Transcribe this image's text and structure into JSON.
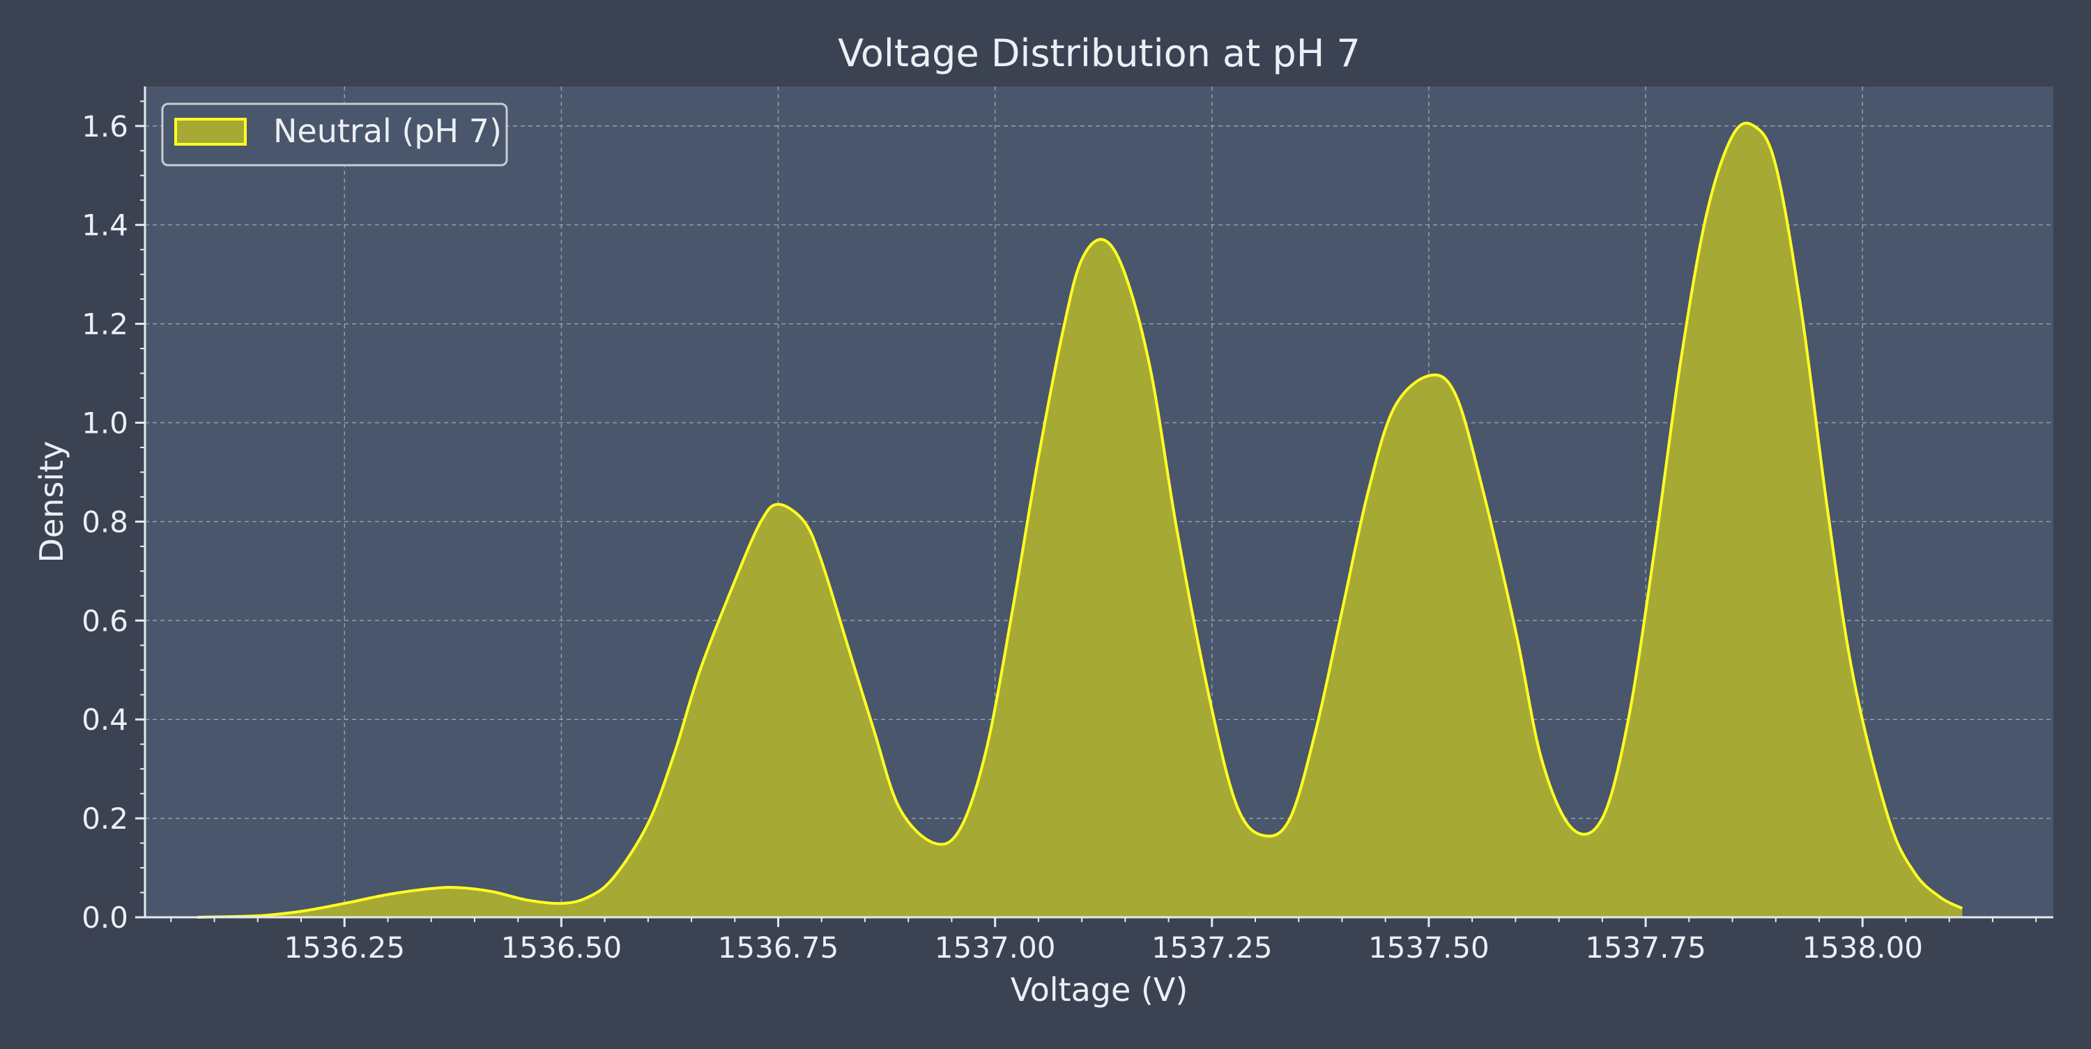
{
  "colors": {
    "figure_bg": "#3b4252",
    "plot_bg": "#4a566b",
    "grid": "#aeb6c4",
    "axis": "#e5e9f0",
    "text": "#eceff4",
    "fill": "#a6aa34",
    "line": "#ffff22",
    "legend_border": "#c8ccd4"
  },
  "chart_data": {
    "type": "area",
    "title": "Voltage Distribution at pH 7",
    "xlabel": "Voltage (V)",
    "ylabel": "Density",
    "xlim": [
      1536.02,
      1538.22
    ],
    "ylim": [
      0,
      1.68
    ],
    "xticks": [
      "1536.25",
      "1536.50",
      "1536.75",
      "1537.00",
      "1537.25",
      "1537.50",
      "1537.75",
      "1538.00"
    ],
    "yticks": [
      "0.0",
      "0.2",
      "0.4",
      "0.6",
      "0.8",
      "1.0",
      "1.2",
      "1.4",
      "1.6"
    ],
    "grid": true,
    "legend": {
      "position": "top-left",
      "entries": [
        "Neutral (pH 7)"
      ]
    },
    "series": [
      {
        "name": "Neutral (pH 7)",
        "x": [
          1536.08,
          1536.15,
          1536.2,
          1536.25,
          1536.3,
          1536.35,
          1536.38,
          1536.42,
          1536.46,
          1536.5,
          1536.53,
          1536.56,
          1536.6,
          1536.63,
          1536.66,
          1536.7,
          1536.73,
          1536.75,
          1536.78,
          1536.8,
          1536.83,
          1536.86,
          1536.89,
          1536.93,
          1536.96,
          1536.99,
          1537.02,
          1537.05,
          1537.08,
          1537.1,
          1537.125,
          1537.15,
          1537.18,
          1537.21,
          1537.25,
          1537.28,
          1537.31,
          1537.34,
          1537.37,
          1537.4,
          1537.43,
          1537.46,
          1537.5,
          1537.53,
          1537.56,
          1537.6,
          1537.63,
          1537.665,
          1537.7,
          1537.73,
          1537.76,
          1537.79,
          1537.82,
          1537.85,
          1537.875,
          1537.9,
          1537.93,
          1537.96,
          1537.99,
          1538.03,
          1538.06,
          1538.09,
          1538.115
        ],
        "y": [
          0.0,
          0.003,
          0.012,
          0.028,
          0.046,
          0.058,
          0.06,
          0.052,
          0.035,
          0.028,
          0.04,
          0.08,
          0.19,
          0.33,
          0.5,
          0.68,
          0.8,
          0.835,
          0.8,
          0.72,
          0.55,
          0.38,
          0.22,
          0.15,
          0.18,
          0.34,
          0.62,
          0.93,
          1.2,
          1.33,
          1.37,
          1.3,
          1.1,
          0.78,
          0.42,
          0.22,
          0.165,
          0.2,
          0.38,
          0.62,
          0.86,
          1.03,
          1.095,
          1.06,
          0.88,
          0.58,
          0.32,
          0.18,
          0.2,
          0.4,
          0.74,
          1.12,
          1.42,
          1.58,
          1.6,
          1.52,
          1.22,
          0.82,
          0.48,
          0.2,
          0.09,
          0.04,
          0.018
        ]
      }
    ]
  }
}
